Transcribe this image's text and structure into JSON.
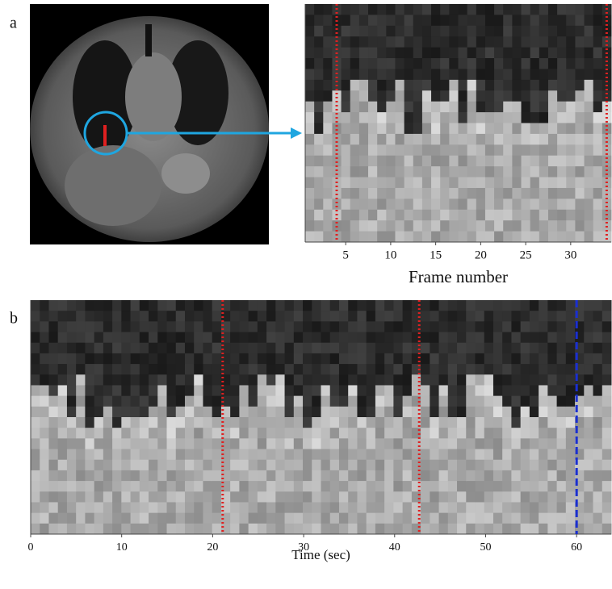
{
  "chart_data": [
    {
      "type": "kymograph",
      "panel": "a",
      "x_label": "Frame number",
      "xlim": [
        0.5,
        34.5
      ],
      "xticks": [
        5,
        10,
        15,
        20,
        25,
        30
      ],
      "markers": [
        {
          "x": 4,
          "color": "#e02020",
          "style": "dotted"
        },
        {
          "x": 34,
          "color": "#e02020",
          "style": "dotted"
        }
      ]
    },
    {
      "type": "kymograph",
      "panel": "b",
      "x_label": "Time (sec)",
      "xlim": [
        0,
        63.8
      ],
      "xticks": [
        0,
        10,
        20,
        30,
        40,
        50,
        60
      ],
      "markers": [
        {
          "x": 21.1,
          "color": "#e02020",
          "style": "dotted"
        },
        {
          "x": 42.7,
          "color": "#e02020",
          "style": "dotted"
        },
        {
          "x": 60,
          "color": "#1a2fd0",
          "style": "dashed"
        }
      ]
    }
  ]
}
